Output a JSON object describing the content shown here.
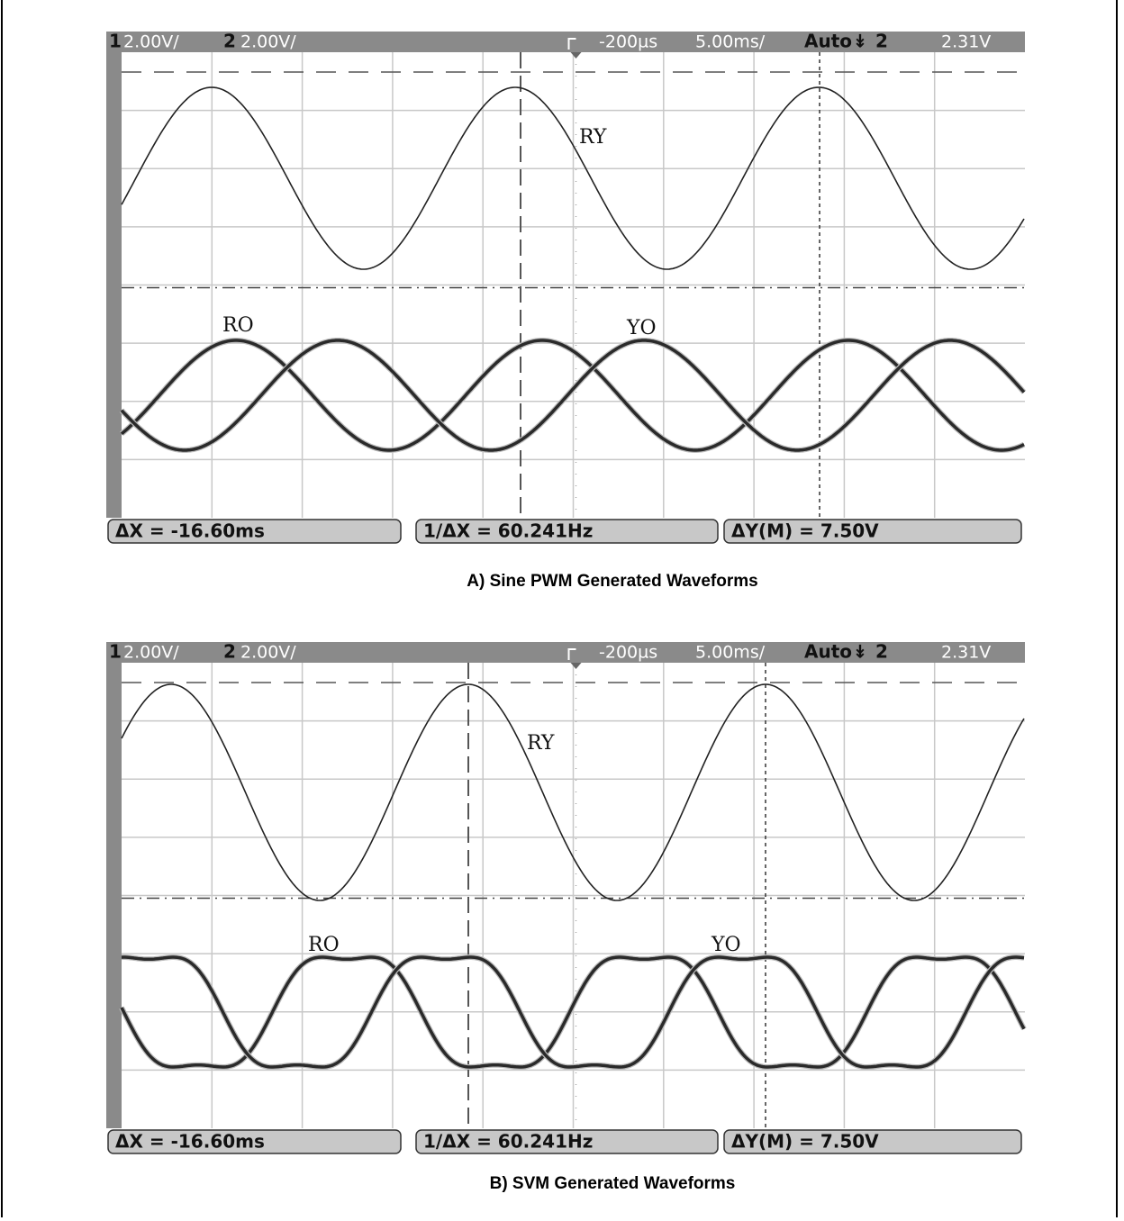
{
  "figures": [
    {
      "header": {
        "ch1": "1",
        "ch1_scale": "2.00V/",
        "ch2": "2",
        "ch2_scale": "2.00V/",
        "delay": "-200µs",
        "timebase": "5.00ms/",
        "mode": "Auto",
        "trigger_source": "2",
        "trigger_level": "2.31V"
      },
      "labels": [
        "RY",
        "RO",
        "YO"
      ],
      "readouts": [
        "ΔX = -16.60ms",
        "1/ΔX = 60.241Hz",
        "ΔY(M) = 7.50V"
      ],
      "caption": "A) Sine PWM Generated Waveforms"
    },
    {
      "header": {
        "ch1": "1",
        "ch1_scale": "2.00V/",
        "ch2": "2",
        "ch2_scale": "2.00V/",
        "delay": "-200µs",
        "timebase": "5.00ms/",
        "mode": "Auto",
        "trigger_source": "2",
        "trigger_level": "2.31V"
      },
      "labels": [
        "RY",
        "RO",
        "YO"
      ],
      "readouts": [
        "ΔX = -16.60ms",
        "1/ΔX = 60.241Hz",
        "ΔY(M) = 7.50V"
      ],
      "caption": "B) SVM Generated Waveforms"
    }
  ]
}
